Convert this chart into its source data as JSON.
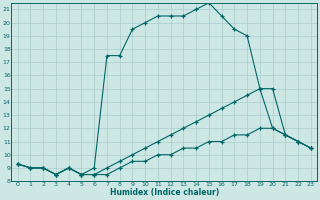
{
  "xlabel": "Humidex (Indice chaleur)",
  "bg_color": "#cde8e4",
  "grid_color": "#aacccc",
  "line_color": "#006666",
  "xlim": [
    -0.5,
    23.5
  ],
  "ylim": [
    8,
    21.5
  ],
  "xticks": [
    0,
    1,
    2,
    3,
    4,
    5,
    6,
    7,
    8,
    9,
    10,
    11,
    12,
    13,
    14,
    15,
    16,
    17,
    18,
    19,
    20,
    21,
    22,
    23
  ],
  "yticks": [
    8,
    9,
    10,
    11,
    12,
    13,
    14,
    15,
    16,
    17,
    18,
    19,
    20,
    21
  ],
  "series": [
    {
      "x": [
        0,
        1,
        2,
        3,
        4,
        5,
        6,
        7,
        8,
        9,
        10,
        11,
        12,
        13,
        14,
        15,
        16,
        17,
        18,
        19,
        20,
        21,
        22,
        23
      ],
      "y": [
        9.3,
        9.0,
        9.0,
        8.5,
        9.0,
        8.5,
        9.0,
        17.5,
        17.5,
        19.5,
        20.0,
        20.5,
        20.5,
        20.5,
        21.0,
        21.5,
        20.5,
        19.5,
        19.0,
        15.0,
        15.0,
        11.5,
        11.0,
        10.5
      ]
    },
    {
      "x": [
        0,
        1,
        2,
        3,
        4,
        5,
        6,
        7,
        8,
        9,
        10,
        11,
        12,
        13,
        14,
        15,
        16,
        17,
        18,
        19,
        20,
        21,
        22,
        23
      ],
      "y": [
        9.3,
        9.0,
        9.0,
        8.5,
        9.0,
        8.5,
        8.5,
        9.0,
        9.5,
        10.0,
        10.5,
        11.0,
        11.5,
        12.0,
        12.5,
        13.0,
        13.5,
        14.0,
        14.5,
        15.0,
        12.0,
        11.5,
        11.0,
        10.5
      ]
    },
    {
      "x": [
        0,
        1,
        2,
        3,
        4,
        5,
        6,
        7,
        8,
        9,
        10,
        11,
        12,
        13,
        14,
        15,
        16,
        17,
        18,
        19,
        20,
        21,
        22,
        23
      ],
      "y": [
        9.3,
        9.0,
        9.0,
        8.5,
        9.0,
        8.5,
        8.5,
        8.5,
        9.0,
        9.5,
        9.5,
        10.0,
        10.0,
        10.5,
        10.5,
        11.0,
        11.0,
        11.5,
        11.5,
        12.0,
        12.0,
        11.5,
        11.0,
        10.5
      ]
    }
  ]
}
